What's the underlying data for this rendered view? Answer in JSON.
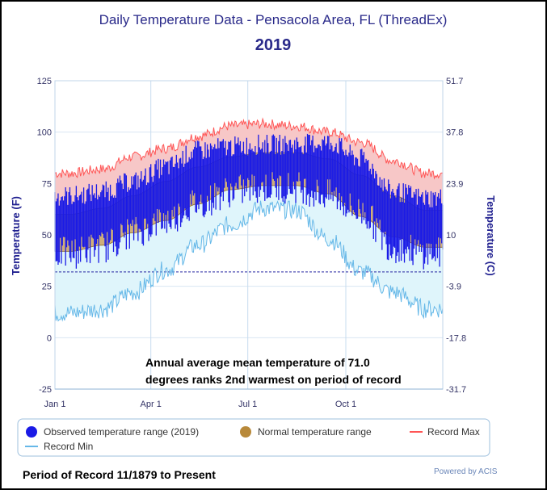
{
  "chart_data": {
    "type": "area",
    "title": "Daily Temperature Data - Pensacola Area, FL (ThreadEx)",
    "subtitle": "2019",
    "ylabel_left": "Temperature (F)",
    "ylabel_right": "Temperature (C)",
    "x_ticks": [
      "Jan 1",
      "Apr 1",
      "Jul 1",
      "Oct 1"
    ],
    "y_ticks_left": [
      "125",
      "100",
      "75",
      "50",
      "25",
      "0",
      "-25"
    ],
    "y_ticks_right": [
      "51.7",
      "37.8",
      "23.9",
      "10",
      "-3.9",
      "-17.8",
      "-31.7"
    ],
    "ylim": [
      -25,
      125
    ],
    "xlim": [
      1,
      365
    ],
    "reference_line": 32,
    "annotation": [
      "Annual average mean temperature of 71.0",
      "degrees ranks 2nd warmest on period of record"
    ],
    "grid": true,
    "legend_position": "bottom",
    "months_mid_day": [
      15,
      46,
      74,
      105,
      135,
      166,
      196,
      227,
      258,
      288,
      319,
      349
    ],
    "series": [
      {
        "name": "Observed temperature range (2019)",
        "color": "#1a1ae6",
        "monthly_high": [
          68,
          70,
          75,
          82,
          90,
          92,
          93,
          93,
          94,
          86,
          70,
          67
        ],
        "monthly_low": [
          42,
          45,
          52,
          58,
          66,
          72,
          74,
          74,
          70,
          62,
          45,
          42
        ]
      },
      {
        "name": "Normal temperature range",
        "color": "#b8893a",
        "monthly_high": [
          60,
          63,
          69,
          76,
          83,
          88,
          90,
          90,
          87,
          79,
          69,
          62
        ],
        "monthly_low": [
          42,
          45,
          51,
          57,
          65,
          72,
          74,
          74,
          70,
          59,
          49,
          44
        ]
      },
      {
        "name": "Record Max",
        "color": "#ff5555",
        "monthly_values": [
          80,
          82,
          88,
          92,
          98,
          103,
          104,
          103,
          100,
          95,
          86,
          80
        ]
      },
      {
        "name": "Record Min",
        "color": "#66b8e8",
        "monthly_values": [
          12,
          14,
          22,
          33,
          45,
          55,
          63,
          62,
          48,
          32,
          22,
          14
        ]
      }
    ]
  },
  "footer": {
    "period": "Period of Record 11/1879 to Present",
    "credit": "Powered by ACIS"
  }
}
